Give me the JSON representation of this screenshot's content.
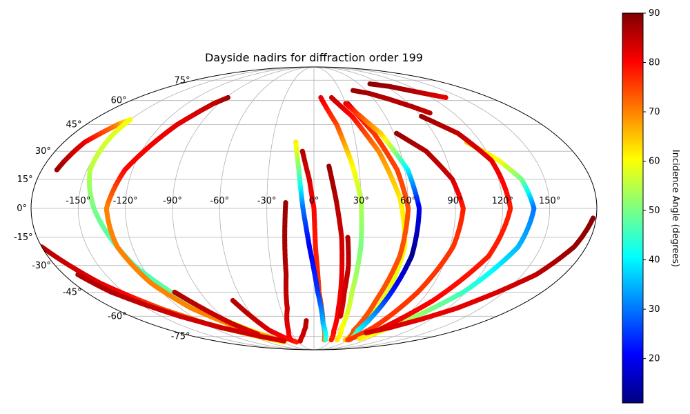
{
  "chart_data": {
    "type": "scatter",
    "projection": "mollweide",
    "title": "Dayside nadirs for diffraction order 199",
    "x_ticks": [
      -150,
      -120,
      -90,
      -60,
      -30,
      0,
      30,
      60,
      90,
      120,
      150
    ],
    "x_tick_labels": [
      "-150°",
      "-120°",
      "-90°",
      "-60°",
      "-30°",
      "0°",
      "30°",
      "60°",
      "90°",
      "120°",
      "150°"
    ],
    "y_ticks": [
      75,
      60,
      45,
      30,
      15,
      0,
      -15,
      -30,
      -45,
      -60,
      -75
    ],
    "y_tick_labels": [
      "75°",
      "60°",
      "45°",
      "30°",
      "15°",
      "0°",
      "-15°",
      "-30°",
      "-45°",
      "-60°",
      "-75°"
    ],
    "grid": true,
    "colormap": "jet",
    "colorbar": {
      "label": "Incidence Angle (degrees)",
      "range": [
        11,
        90
      ],
      "ticks": [
        20,
        30,
        40,
        50,
        60,
        70,
        80,
        90
      ],
      "tick_labels": [
        "20",
        "30",
        "40",
        "50",
        "60",
        "70",
        "80",
        "90"
      ]
    },
    "tracks": [
      {
        "lon": [
          -170,
          -165,
          -155,
          -150,
          -150,
          -148,
          -140,
          -125,
          -105,
          -80,
          -62
        ],
        "lat": [
          20,
          35,
          45,
          48,
          40,
          20,
          0,
          -30,
          -55,
          -70,
          -78
        ],
        "c": [
          88,
          82,
          70,
          60,
          58,
          55,
          50,
          45,
          50,
          60,
          70
        ]
      },
      {
        "lon": [
          -180,
          -170,
          -160,
          -150,
          -138,
          -118,
          -95,
          -75,
          -58
        ],
        "lat": [
          -20,
          -30,
          -40,
          -47,
          -55,
          -65,
          -72,
          -77,
          -80
        ],
        "c": [
          86,
          84,
          82,
          80,
          75,
          70,
          65,
          62,
          60
        ]
      },
      {
        "lon": [
          -88,
          -95,
          -108,
          -125,
          -132,
          -130,
          -122,
          -110,
          -90,
          -72
        ],
        "lat": [
          62,
          58,
          45,
          20,
          0,
          -20,
          -40,
          -55,
          -68,
          -76
        ],
        "c": [
          88,
          85,
          82,
          80,
          70,
          70,
          70,
          70,
          70,
          70
        ]
      },
      {
        "lon": [
          -110,
          -100,
          -90,
          -78
        ],
        "lat": [
          -45,
          -55,
          -65,
          -73
        ],
        "c": [
          86,
          85,
          84,
          82
        ]
      },
      {
        "lon": [
          -68,
          -62,
          -56,
          -46,
          -34
        ],
        "lat": [
          -50,
          -60,
          -70,
          -76,
          -80
        ],
        "c": [
          86,
          85,
          83,
          80,
          78
        ]
      },
      {
        "lon": [
          -18,
          -19,
          -20,
          -24,
          -32,
          -40
        ],
        "lat": [
          3,
          -15,
          -35,
          -55,
          -70,
          -78
        ],
        "c": [
          88,
          87,
          86,
          84,
          82,
          80
        ]
      },
      {
        "lon": [
          -8,
          -10,
          -16,
          -25
        ],
        "lat": [
          -63,
          -68,
          -74,
          -79
        ],
        "c": [
          86,
          85,
          84,
          83
        ]
      },
      {
        "lon": [
          -8,
          -3,
          0,
          1,
          4,
          10,
          18
        ],
        "lat": [
          30,
          15,
          0,
          -20,
          -45,
          -65,
          -78
        ],
        "c": [
          86,
          83,
          80,
          78,
          76,
          74,
          72
        ]
      },
      {
        "lon": [
          -13,
          -10,
          -7,
          -3,
          3,
          10,
          20
        ],
        "lat": [
          35,
          20,
          0,
          -20,
          -45,
          -65,
          -78
        ],
        "c": [
          62,
          50,
          30,
          20,
          25,
          35,
          45
        ]
      },
      {
        "lon": [
          10,
          14,
          18,
          20,
          22,
          25,
          30
        ],
        "lat": [
          22,
          5,
          -15,
          -35,
          -55,
          -70,
          -78
        ],
        "c": [
          88,
          86,
          84,
          82,
          81,
          80,
          78
        ]
      },
      {
        "lon": [
          22,
          24,
          24,
          26
        ],
        "lat": [
          -15,
          -30,
          -45,
          -60
        ],
        "c": [
          86,
          85,
          84,
          83
        ]
      },
      {
        "lon": [
          7,
          18,
          25,
          30,
          31,
          30,
          33,
          40
        ],
        "lat": [
          62,
          45,
          25,
          5,
          -20,
          -45,
          -68,
          -78
        ],
        "c": [
          82,
          75,
          62,
          55,
          50,
          55,
          60,
          62
        ]
      },
      {
        "lon": [
          18,
          32,
          45,
          55,
          60,
          58,
          55,
          54
        ],
        "lat": [
          62,
          50,
          30,
          5,
          -20,
          -45,
          -68,
          -78
        ],
        "c": [
          85,
          80,
          70,
          62,
          60,
          58,
          60,
          64
        ]
      },
      {
        "lon": [
          32,
          45,
          55,
          60,
          58,
          52,
          50,
          58
        ],
        "lat": [
          58,
          40,
          20,
          0,
          -25,
          -50,
          -70,
          -78
        ],
        "c": [
          85,
          76,
          75,
          74,
          74,
          74,
          74,
          74
        ]
      },
      {
        "lon": [
          30,
          50,
          62,
          67,
          66,
          60,
          55,
          62
        ],
        "lat": [
          58,
          40,
          20,
          0,
          -25,
          -50,
          -70,
          -78
        ],
        "c": [
          82,
          65,
          40,
          20,
          12,
          25,
          40,
          55
        ]
      },
      {
        "lon": [
          62,
          78,
          90,
          95,
          92,
          82,
          70,
          60
        ],
        "lat": [
          40,
          30,
          15,
          0,
          -20,
          -45,
          -68,
          -78
        ],
        "c": [
          88,
          86,
          84,
          78,
          76,
          76,
          76,
          76
        ]
      },
      {
        "lon": [
          110,
          125,
          135,
          140,
          135,
          118,
          95,
          75
        ],
        "lat": [
          35,
          25,
          15,
          0,
          -20,
          -45,
          -65,
          -77
        ],
        "c": [
          65,
          60,
          50,
          30,
          35,
          45,
          55,
          62
        ]
      },
      {
        "lon": [
          90,
          108,
          120,
          125,
          118,
          100,
          80
        ],
        "lat": [
          50,
          40,
          25,
          0,
          -25,
          -50,
          -70
        ],
        "c": [
          88,
          85,
          82,
          78,
          78,
          80,
          82
        ]
      },
      {
        "lon": [
          45,
          60,
          75,
          90,
          100
        ],
        "lat": [
          67,
          65,
          61,
          56,
          52
        ],
        "c": [
          88,
          87,
          86,
          86,
          85
        ]
      },
      {
        "lon": [
          75,
          95,
          115,
          135
        ],
        "lat": [
          72,
          70,
          66,
          62
        ],
        "c": [
          89,
          88,
          86,
          82
        ]
      },
      {
        "lon": [
          70,
          90,
          110,
          128,
          145,
          160,
          172,
          178
        ],
        "lat": [
          -72,
          -68,
          -62,
          -55,
          -45,
          -35,
          -20,
          -5
        ],
        "c": [
          84,
          83,
          82,
          82,
          83,
          85,
          88,
          89
        ]
      },
      {
        "lon": [
          -170,
          -160,
          -148,
          -132,
          -110,
          -80,
          -55
        ],
        "lat": [
          -35,
          -45,
          -52,
          -60,
          -68,
          -75,
          -79
        ],
        "c": [
          86,
          86,
          85,
          84,
          84,
          84,
          83
        ]
      }
    ]
  }
}
